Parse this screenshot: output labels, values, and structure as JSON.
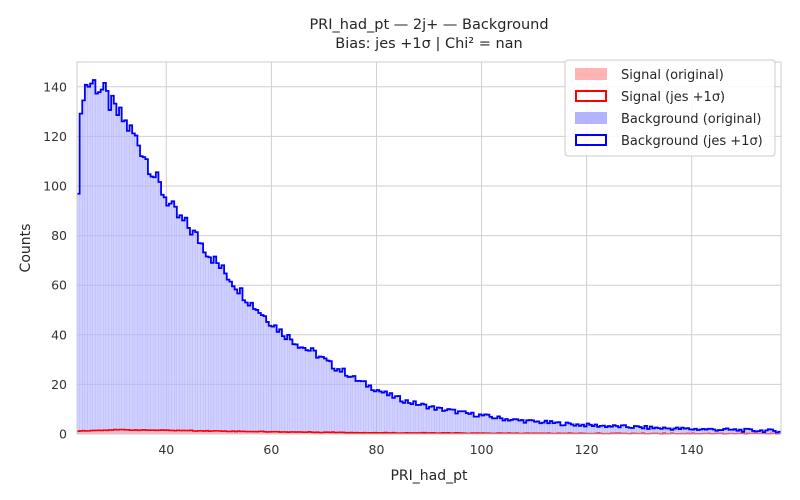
{
  "chart_data": {
    "type": "histogram",
    "title": "PRI_had_pt — 2j+ — Background",
    "subtitle": "Bias: jes +1σ | Chi² = nan",
    "xlabel": "PRI_had_pt",
    "ylabel": "Counts",
    "xlim": [
      23,
      157
    ],
    "ylim": [
      0,
      150
    ],
    "xticks": [
      40,
      60,
      80,
      100,
      120,
      140
    ],
    "yticks": [
      0,
      20,
      40,
      60,
      80,
      100,
      120,
      140
    ],
    "grid": true,
    "legend_position": "top-right",
    "colors": {
      "signal_fill": "#ffb3b3",
      "signal_line": "#ff0000",
      "background_fill": "#b3b3ff",
      "background_line": "#0000ff",
      "grid": "#d0d0d0",
      "spine": "#cccccc"
    },
    "legend": [
      {
        "label": "Signal (original)",
        "style": "fill",
        "color": "#ffb3b3"
      },
      {
        "label": "Signal (jes +1σ)",
        "style": "outline",
        "color": "#ff0000"
      },
      {
        "label": "Background (original)",
        "style": "fill",
        "color": "#b3b3ff"
      },
      {
        "label": "Background (jes +1σ)",
        "style": "outline",
        "color": "#0000ff"
      }
    ],
    "bin_width": 1,
    "series": [
      {
        "name": "Background (jes +1σ)",
        "x": [
          23,
          24,
          25,
          26,
          28,
          30,
          32,
          34,
          36,
          38,
          40,
          42,
          44,
          46,
          48,
          50,
          52,
          54,
          56,
          58,
          60,
          62,
          64,
          66,
          68,
          70,
          72,
          74,
          76,
          78,
          80,
          82,
          84,
          86,
          88,
          90,
          92,
          94,
          96,
          98,
          100,
          102,
          104,
          106,
          108,
          110,
          112,
          114,
          116,
          118,
          120,
          125,
          130,
          135,
          140,
          145,
          150,
          157
        ],
        "y": [
          88,
          138,
          141,
          142,
          138,
          131,
          126,
          120,
          112,
          103,
          95,
          88,
          84,
          79,
          73,
          68,
          63,
          58,
          53,
          49,
          45,
          41,
          38,
          35,
          33,
          30,
          27,
          25,
          22,
          20,
          18,
          16,
          14.5,
          13,
          12,
          11,
          10,
          9.5,
          8.7,
          8,
          7.5,
          6.8,
          6.2,
          5.7,
          5.3,
          5,
          4.7,
          4.4,
          4.1,
          3.8,
          3.6,
          3.1,
          2.7,
          2.3,
          2,
          1.8,
          1.5,
          1.2
        ]
      },
      {
        "name": "Signal (jes +1σ)",
        "x": [
          23,
          30,
          40,
          50,
          60,
          70,
          80,
          100,
          120,
          157
        ],
        "y": [
          1.2,
          1.7,
          1.5,
          1.2,
          0.9,
          0.7,
          0.5,
          0.3,
          0.2,
          0.1
        ]
      }
    ]
  }
}
